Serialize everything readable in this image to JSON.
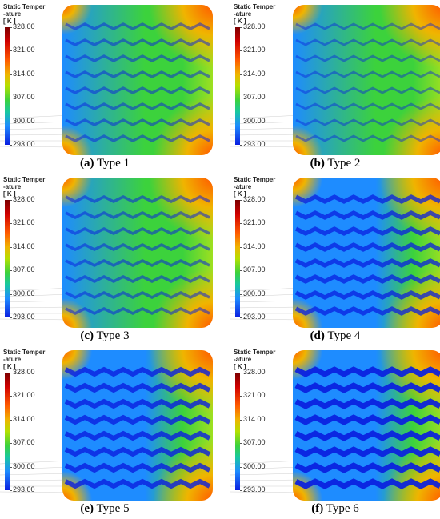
{
  "legend": {
    "title_line1": "Static Temper",
    "title_line2": "-ature",
    "title_line3": "[ K ]",
    "ticks": [
      "328.00",
      "321.00",
      "314.00",
      "307.00",
      "300.00",
      "293.00"
    ]
  },
  "panels": [
    {
      "letter": "(a)",
      "label": "Type 1"
    },
    {
      "letter": "(b)",
      "label": "Type 2"
    },
    {
      "letter": "(c)",
      "label": "Type 3"
    },
    {
      "letter": "(d)",
      "label": "Type 4"
    },
    {
      "letter": "(e)",
      "label": "Type 5"
    },
    {
      "letter": "(f)",
      "label": "Type 6"
    }
  ],
  "colors": {
    "hot": "#ff5a00",
    "warm": "#f0b400",
    "mid": "#3cd23c",
    "cool": "#1e8cff",
    "cold": "#0a1ee0"
  }
}
